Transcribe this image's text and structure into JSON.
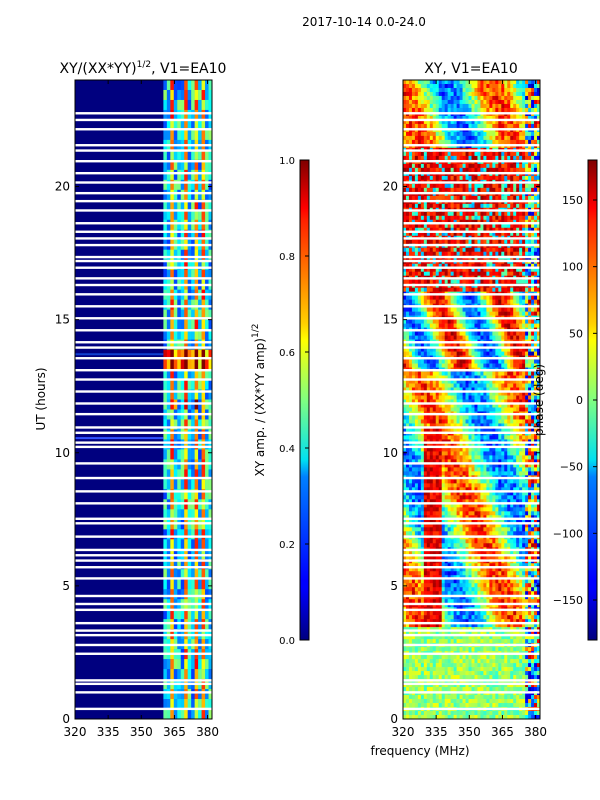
{
  "figure": {
    "suptitle": "2017-10-14 0.0-24.0"
  },
  "chart_data": [
    {
      "type": "heatmap",
      "title": "XY/(XX*YY)",
      "title_exp": "1/2",
      "title_suffix": ", V1=EA10",
      "xlabel": "",
      "ylabel": "UT (hours)",
      "xlim": [
        320,
        382
      ],
      "ylim": [
        0,
        24
      ],
      "xticks": [
        320,
        335,
        350,
        365,
        380
      ],
      "yticks": [
        0,
        5,
        10,
        15,
        20
      ],
      "rfi_band_mhz": [
        360,
        382
      ],
      "colorbar": {
        "label": "XY amp. / (XX*YY amp)",
        "label_exp": "1/2",
        "range": [
          0.0,
          1.0
        ],
        "ticks": [
          "0.0",
          "0.2",
          "0.4",
          "0.6",
          "0.8",
          "1.0"
        ],
        "tick_values": [
          0.0,
          0.2,
          0.4,
          0.6,
          0.8,
          1.0
        ]
      }
    },
    {
      "type": "heatmap",
      "title": "XY, V1=EA10",
      "xlabel": "frequency (MHz)",
      "ylabel": "",
      "xlim": [
        320,
        382
      ],
      "ylim": [
        0,
        24
      ],
      "xticks": [
        320,
        335,
        350,
        365,
        380
      ],
      "yticks": [
        0,
        5,
        10,
        15,
        20
      ],
      "colorbar": {
        "label": "phase (deg)",
        "range": [
          -180,
          180
        ],
        "ticks": [
          "150",
          "100",
          "50",
          "0",
          "−50",
          "−100",
          "−150"
        ],
        "tick_values": [
          150,
          100,
          50,
          0,
          -50,
          -100,
          -150
        ]
      }
    }
  ],
  "flagged_hours": [
    0.38,
    1.0,
    1.32,
    1.45,
    2.45,
    2.78,
    3.15,
    3.32,
    3.6,
    4.1,
    4.32,
    4.62,
    5.28,
    5.7,
    5.95,
    6.15,
    6.35,
    6.85,
    7.35,
    7.52,
    8.1,
    8.55,
    9.05,
    9.6,
    10.22,
    10.38,
    10.75,
    10.95,
    11.45,
    11.85,
    12.3,
    12.75,
    13.1,
    13.55,
    13.95,
    14.15,
    14.6,
    15.05,
    15.5,
    15.95,
    16.3,
    16.55,
    16.95,
    17.2,
    17.35,
    17.8,
    18.05,
    18.3,
    18.62,
    19.1,
    19.45,
    19.75,
    20.15,
    20.5,
    20.95,
    21.35,
    21.55,
    22.15,
    22.5,
    22.75
  ]
}
